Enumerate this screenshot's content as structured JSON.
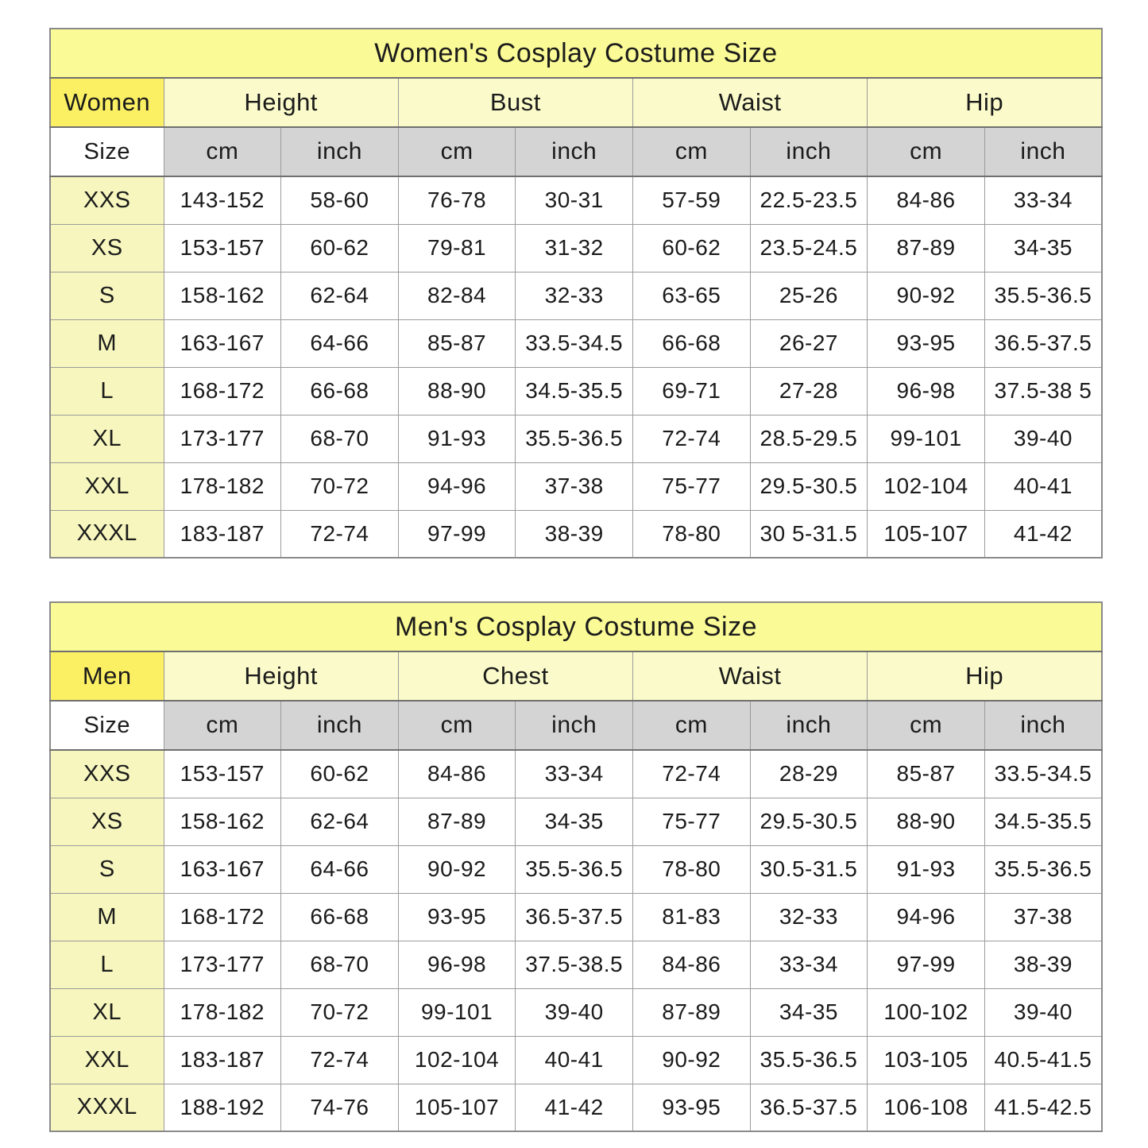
{
  "colors": {
    "page_bg": "#ffffff",
    "title_bg": "#fafa96",
    "corner_bg": "#fbf063",
    "group_bg": "#fafaca",
    "units_bg": "#d4d4d4",
    "size_col_bg": "#f6f6be",
    "cell_bg": "#ffffff",
    "grid_line": "#9b9b9b",
    "heavy_line": "#6f6f6f",
    "outer_border": "#8a8a8a",
    "text": "#1b1b1b"
  },
  "chart_data": [
    {
      "type": "table",
      "title": "Women's Cosplay Costume Size",
      "corner_label": "Women",
      "row_header": "Size",
      "column_groups": [
        "Height",
        "Bust",
        "Waist",
        "Hip"
      ],
      "units": [
        "cm",
        "inch",
        "cm",
        "inch",
        "cm",
        "inch",
        "cm",
        "inch"
      ],
      "rows": [
        {
          "size": "XXS",
          "values": [
            "143-152",
            "58-60",
            "76-78",
            "30-31",
            "57-59",
            "22.5-23.5",
            "84-86",
            "33-34"
          ]
        },
        {
          "size": "XS",
          "values": [
            "153-157",
            "60-62",
            "79-81",
            "31-32",
            "60-62",
            "23.5-24.5",
            "87-89",
            "34-35"
          ]
        },
        {
          "size": "S",
          "values": [
            "158-162",
            "62-64",
            "82-84",
            "32-33",
            "63-65",
            "25-26",
            "90-92",
            "35.5-36.5"
          ]
        },
        {
          "size": "M",
          "values": [
            "163-167",
            "64-66",
            "85-87",
            "33.5-34.5",
            "66-68",
            "26-27",
            "93-95",
            "36.5-37.5"
          ]
        },
        {
          "size": "L",
          "values": [
            "168-172",
            "66-68",
            "88-90",
            "34.5-35.5",
            "69-71",
            "27-28",
            "96-98",
            "37.5-38 5"
          ]
        },
        {
          "size": "XL",
          "values": [
            "173-177",
            "68-70",
            "91-93",
            "35.5-36.5",
            "72-74",
            "28.5-29.5",
            "99-101",
            "39-40"
          ]
        },
        {
          "size": "XXL",
          "values": [
            "178-182",
            "70-72",
            "94-96",
            "37-38",
            "75-77",
            "29.5-30.5",
            "102-104",
            "40-41"
          ]
        },
        {
          "size": "XXXL",
          "values": [
            "183-187",
            "72-74",
            "97-99",
            "38-39",
            "78-80",
            "30 5-31.5",
            "105-107",
            "41-42"
          ]
        }
      ]
    },
    {
      "type": "table",
      "title": "Men's Cosplay Costume Size",
      "corner_label": "Men",
      "row_header": "Size",
      "column_groups": [
        "Height",
        "Chest",
        "Waist",
        "Hip"
      ],
      "units": [
        "cm",
        "inch",
        "cm",
        "inch",
        "cm",
        "inch",
        "cm",
        "inch"
      ],
      "rows": [
        {
          "size": "XXS",
          "values": [
            "153-157",
            "60-62",
            "84-86",
            "33-34",
            "72-74",
            "28-29",
            "85-87",
            "33.5-34.5"
          ]
        },
        {
          "size": "XS",
          "values": [
            "158-162",
            "62-64",
            "87-89",
            "34-35",
            "75-77",
            "29.5-30.5",
            "88-90",
            "34.5-35.5"
          ]
        },
        {
          "size": "S",
          "values": [
            "163-167",
            "64-66",
            "90-92",
            "35.5-36.5",
            "78-80",
            "30.5-31.5",
            "91-93",
            "35.5-36.5"
          ]
        },
        {
          "size": "M",
          "values": [
            "168-172",
            "66-68",
            "93-95",
            "36.5-37.5",
            "81-83",
            "32-33",
            "94-96",
            "37-38"
          ]
        },
        {
          "size": "L",
          "values": [
            "173-177",
            "68-70",
            "96-98",
            "37.5-38.5",
            "84-86",
            "33-34",
            "97-99",
            "38-39"
          ]
        },
        {
          "size": "XL",
          "values": [
            "178-182",
            "70-72",
            "99-101",
            "39-40",
            "87-89",
            "34-35",
            "100-102",
            "39-40"
          ]
        },
        {
          "size": "XXL",
          "values": [
            "183-187",
            "72-74",
            "102-104",
            "40-41",
            "90-92",
            "35.5-36.5",
            "103-105",
            "40.5-41.5"
          ]
        },
        {
          "size": "XXXL",
          "values": [
            "188-192",
            "74-76",
            "105-107",
            "41-42",
            "93-95",
            "36.5-37.5",
            "106-108",
            "41.5-42.5"
          ]
        }
      ]
    }
  ]
}
